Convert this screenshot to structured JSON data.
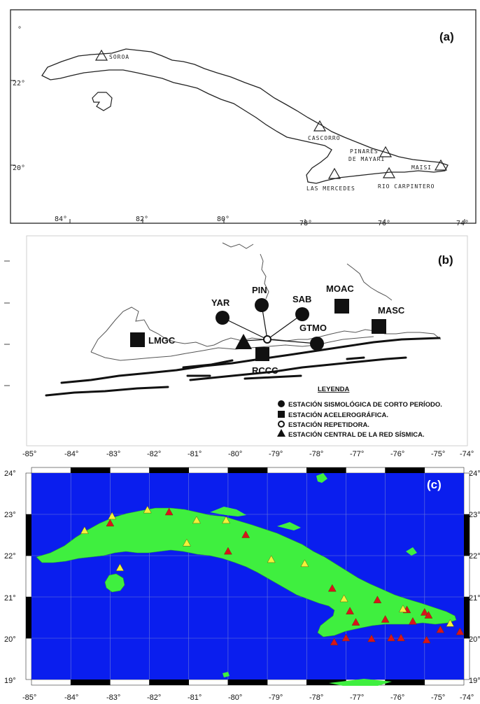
{
  "panel_a": {
    "label": "(a)",
    "lat_labels": [
      "22°",
      "20°"
    ],
    "lon_labels": [
      "84°",
      "82°",
      "80°",
      "78°",
      "76°",
      "74°"
    ],
    "stations": [
      {
        "name": "SOROA"
      },
      {
        "name": "CASCORRO"
      },
      {
        "name": "PINARES"
      },
      {
        "name": "DE MAYARI"
      },
      {
        "name": "MAISI"
      },
      {
        "name": "LAS MERCEDES"
      },
      {
        "name": "RIO CARPINTERO"
      }
    ]
  },
  "panel_b": {
    "label": "(b)",
    "stations": [
      "YAR",
      "PIN",
      "SAB",
      "MOAC",
      "MASC",
      "GTMO",
      "LMGC",
      "RCCC"
    ],
    "legend_title": "LEYENDA",
    "legend": [
      "ESTACIÓN SISMOLÓGICA DE CORTO PERÍODO.",
      "ESTACIÓN ACELEROGRÁFICA.",
      "ESTACIÓN REPETIDORA.",
      "ESTACIÓN CENTRAL DE LA RED SÍSMICA."
    ]
  },
  "panel_c": {
    "label": "(c)",
    "lon_labels": [
      "-85°",
      "-84°",
      "-83°",
      "-82°",
      "-81°",
      "-80°",
      "-79°",
      "-78°",
      "-77°",
      "-76°",
      "-75°",
      "-74°"
    ],
    "lat_labels": [
      "24°",
      "23°",
      "22°",
      "21°",
      "20°",
      "19°"
    ],
    "colors": {
      "sea": "#0a1eee",
      "land": "#3fef3f",
      "red": "#d8141c",
      "yellow": "#f2f23a"
    },
    "red_stations": [
      {
        "lon": -83.0,
        "lat": 22.78
      },
      {
        "lon": -81.5,
        "lat": 23.05
      },
      {
        "lon": -79.55,
        "lat": 22.5
      },
      {
        "lon": -80.0,
        "lat": 22.1
      },
      {
        "lon": -77.35,
        "lat": 21.2
      },
      {
        "lon": -76.9,
        "lat": 20.65
      },
      {
        "lon": -76.2,
        "lat": 20.92
      },
      {
        "lon": -75.45,
        "lat": 20.68
      },
      {
        "lon": -75.0,
        "lat": 20.62
      },
      {
        "lon": -76.75,
        "lat": 20.38
      },
      {
        "lon": -76.0,
        "lat": 20.45
      },
      {
        "lon": -75.3,
        "lat": 20.4
      },
      {
        "lon": -74.9,
        "lat": 20.55
      },
      {
        "lon": -77.3,
        "lat": 19.9
      },
      {
        "lon": -77.0,
        "lat": 20.0
      },
      {
        "lon": -76.35,
        "lat": 19.98
      },
      {
        "lon": -75.85,
        "lat": 20.0
      },
      {
        "lon": -75.6,
        "lat": 20.0
      },
      {
        "lon": -74.95,
        "lat": 19.95
      },
      {
        "lon": -74.6,
        "lat": 20.2
      },
      {
        "lon": -74.1,
        "lat": 20.15
      }
    ],
    "yellow_stations": [
      {
        "lon": -83.65,
        "lat": 22.6
      },
      {
        "lon": -82.95,
        "lat": 22.95
      },
      {
        "lon": -82.05,
        "lat": 23.1
      },
      {
        "lon": -80.8,
        "lat": 22.85
      },
      {
        "lon": -80.05,
        "lat": 22.85
      },
      {
        "lon": -81.05,
        "lat": 22.3
      },
      {
        "lon": -82.75,
        "lat": 21.7
      },
      {
        "lon": -78.9,
        "lat": 21.9
      },
      {
        "lon": -78.05,
        "lat": 21.8
      },
      {
        "lon": -77.05,
        "lat": 20.95
      },
      {
        "lon": -75.55,
        "lat": 20.7
      },
      {
        "lon": -74.35,
        "lat": 20.35
      }
    ]
  }
}
